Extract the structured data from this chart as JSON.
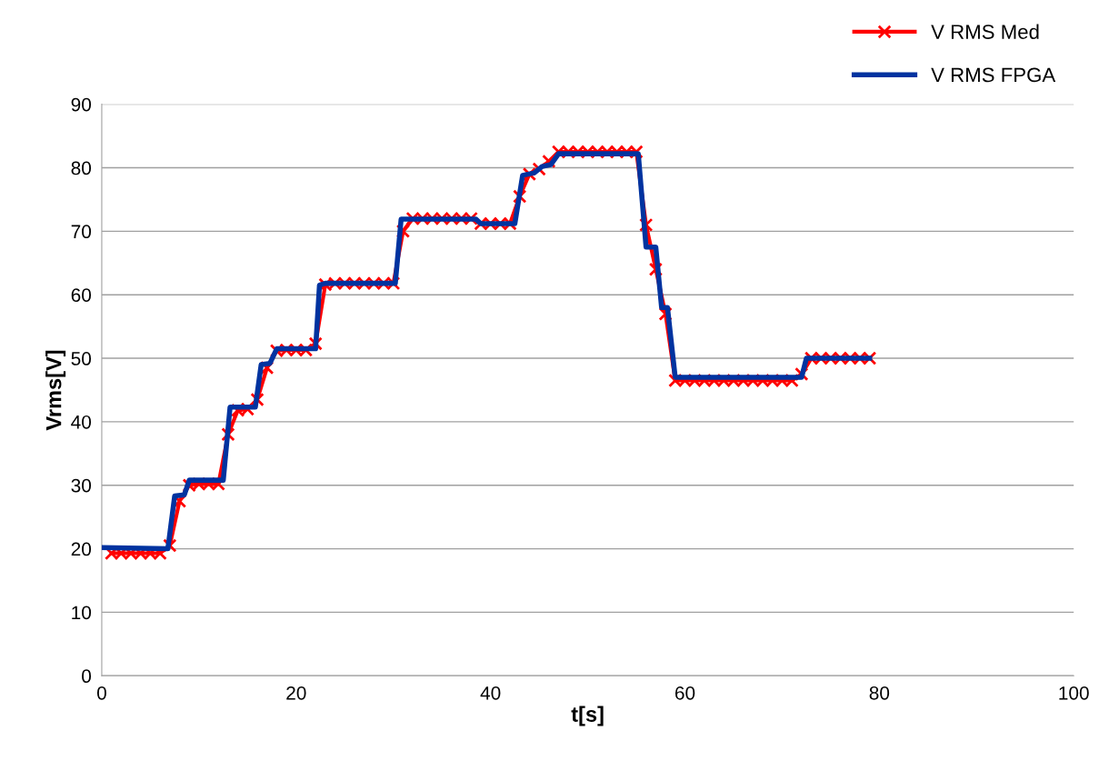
{
  "chart_data": {
    "type": "line",
    "xlabel": "t[s]",
    "ylabel": "Vrms[V]",
    "xlim": [
      0,
      100
    ],
    "xticks": [
      0,
      20,
      40,
      60,
      80,
      100
    ],
    "ylim": [
      0,
      90
    ],
    "yticks": [
      0,
      10,
      20,
      30,
      40,
      50,
      60,
      70,
      80,
      90
    ],
    "grid": "y",
    "legend": "top right",
    "line_style": "solid",
    "series": [
      {
        "name": "V RMS Med",
        "color": "#ff0000",
        "marker": "cross",
        "x": [
          1,
          2,
          3,
          4,
          5,
          6,
          7,
          8,
          9,
          10,
          11,
          12,
          13,
          14,
          15,
          16,
          17,
          18,
          19,
          20,
          21,
          22,
          23,
          24,
          25,
          26,
          27,
          28,
          29,
          30,
          31,
          32,
          33,
          34,
          35,
          36,
          37,
          38,
          39,
          40,
          41,
          42,
          43,
          44,
          45,
          46,
          47,
          48,
          49,
          50,
          51,
          52,
          53,
          54,
          55,
          56,
          57,
          58,
          59,
          60,
          61,
          62,
          63,
          64,
          65,
          66,
          67,
          68,
          69,
          70,
          71,
          72,
          73,
          74,
          75,
          76,
          77,
          78,
          79
        ],
        "values": [
          19.3,
          19.3,
          19.3,
          19.3,
          19.3,
          19.3,
          20.5,
          27.5,
          30,
          30.2,
          30.2,
          30.2,
          38,
          41.8,
          42,
          43.5,
          48.5,
          51.2,
          51.3,
          51.3,
          51.3,
          52.3,
          61.6,
          61.8,
          61.8,
          61.8,
          61.8,
          61.8,
          61.8,
          61.8,
          70,
          72,
          72,
          72,
          72,
          72,
          72,
          72,
          71.2,
          71.2,
          71.2,
          71.2,
          75.5,
          79,
          79.8,
          81,
          82.5,
          82.5,
          82.5,
          82.5,
          82.5,
          82.5,
          82.5,
          82.5,
          82.5,
          71,
          64,
          57,
          46.5,
          46.5,
          46.5,
          46.5,
          46.5,
          46.5,
          46.5,
          46.5,
          46.5,
          46.5,
          46.5,
          46.5,
          46.5,
          47.5,
          50,
          50,
          50,
          50,
          50,
          50,
          50
        ]
      },
      {
        "name": "V RMS FPGA",
        "color": "#0033a0",
        "marker": "none",
        "x": [
          0,
          6.8,
          7.5,
          8.5,
          9,
          12.5,
          13.2,
          15.8,
          16.4,
          17.3,
          18,
          22,
          22.4,
          23,
          30.2,
          30.8,
          38.5,
          39,
          42.5,
          43.3,
          44.5,
          45.3,
          46.2,
          47,
          55.2,
          56,
          57,
          57.6,
          58.2,
          59,
          72,
          72.5,
          79
        ],
        "values": [
          20.2,
          20,
          28.3,
          28.5,
          30.8,
          30.8,
          42.3,
          42.3,
          49,
          49.2,
          51.5,
          51.5,
          61.5,
          61.8,
          61.8,
          71.9,
          71.9,
          71.2,
          71.2,
          78.8,
          79.2,
          80.2,
          80.5,
          82.2,
          82.2,
          67.5,
          67.5,
          58,
          58,
          47,
          47,
          50,
          50
        ]
      }
    ]
  }
}
